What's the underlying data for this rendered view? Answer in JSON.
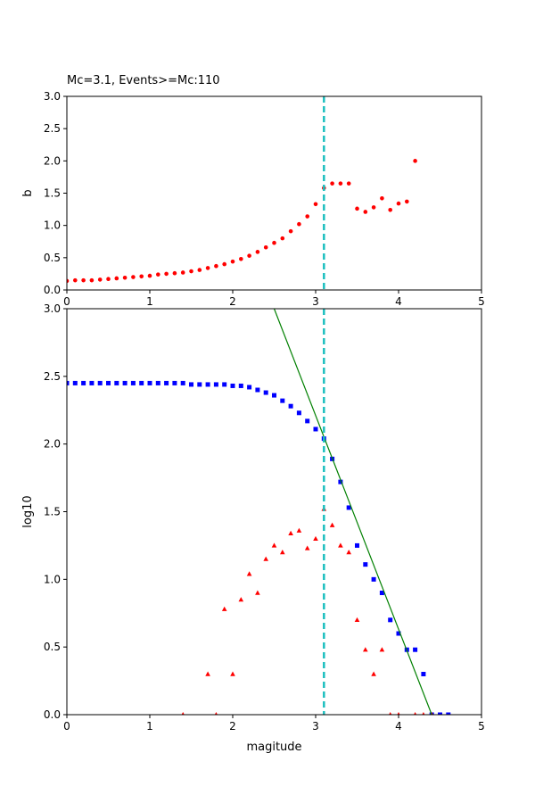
{
  "figure_title": "Mc=3.1, Events>=Mc:110",
  "colors": {
    "b_marker": "#ff0000",
    "cumulative_marker": "#0000ff",
    "noncumulative_marker": "#ff0000",
    "fit_line": "#008000",
    "mc_line": "#1cbfbf"
  },
  "chart_data": [
    {
      "type": "scatter",
      "title": "Mc=3.1, Events>=Mc:110",
      "xlabel": "",
      "ylabel": "b",
      "xlim": [
        0,
        5
      ],
      "ylim": [
        0,
        3
      ],
      "xticks": [
        "0",
        "1",
        "2",
        "3",
        "4",
        "5"
      ],
      "yticks": [
        "0.0",
        "0.5",
        "1.0",
        "1.5",
        "2.0",
        "2.5",
        "3.0"
      ],
      "grid": false,
      "mc_line_x": 3.1,
      "series": [
        {
          "marker": "circle",
          "color": "#ff0000",
          "x": [
            0.0,
            0.1,
            0.2,
            0.3,
            0.4,
            0.5,
            0.6,
            0.7,
            0.8,
            0.9,
            1.0,
            1.1,
            1.2,
            1.3,
            1.4,
            1.5,
            1.6,
            1.7,
            1.8,
            1.9,
            2.0,
            2.1,
            2.2,
            2.3,
            2.4,
            2.5,
            2.6,
            2.7,
            2.8,
            2.9,
            3.0,
            3.1,
            3.2,
            3.3,
            3.4,
            3.5,
            3.6,
            3.7,
            3.8,
            3.9,
            4.0,
            4.1,
            4.2
          ],
          "y": [
            0.14,
            0.15,
            0.15,
            0.15,
            0.16,
            0.17,
            0.18,
            0.19,
            0.2,
            0.21,
            0.22,
            0.24,
            0.25,
            0.26,
            0.27,
            0.29,
            0.31,
            0.34,
            0.37,
            0.4,
            0.44,
            0.48,
            0.53,
            0.59,
            0.66,
            0.73,
            0.8,
            0.91,
            1.02,
            1.14,
            1.33,
            1.58,
            1.65,
            1.65,
            1.65,
            1.26,
            1.21,
            1.28,
            1.42,
            1.24,
            1.34,
            1.37,
            2.0
          ]
        }
      ]
    },
    {
      "type": "scatter",
      "title": "",
      "xlabel": "magitude",
      "ylabel": "log10",
      "xlim": [
        0,
        5
      ],
      "ylim": [
        0,
        3
      ],
      "xticks": [
        "0",
        "1",
        "2",
        "3",
        "4",
        "5"
      ],
      "yticks": [
        "0.0",
        "0.5",
        "1.0",
        "1.5",
        "2.0",
        "2.5",
        "3.0"
      ],
      "grid": false,
      "mc_line_x": 3.1,
      "fit_line": {
        "x": [
          2.5,
          4.4
        ],
        "y": [
          3.0,
          0.0
        ]
      },
      "series": [
        {
          "marker": "square",
          "color": "#0000ff",
          "x": [
            0.0,
            0.1,
            0.2,
            0.3,
            0.4,
            0.5,
            0.6,
            0.7,
            0.8,
            0.9,
            1.0,
            1.1,
            1.2,
            1.3,
            1.4,
            1.5,
            1.6,
            1.7,
            1.8,
            1.9,
            2.0,
            2.1,
            2.2,
            2.3,
            2.4,
            2.5,
            2.6,
            2.7,
            2.8,
            2.9,
            3.0,
            3.1,
            3.2,
            3.3,
            3.4,
            3.5,
            3.6,
            3.7,
            3.8,
            3.9,
            4.0,
            4.1,
            4.2,
            4.3,
            4.4,
            4.5,
            4.6
          ],
          "y": [
            2.45,
            2.45,
            2.45,
            2.45,
            2.45,
            2.45,
            2.45,
            2.45,
            2.45,
            2.45,
            2.45,
            2.45,
            2.45,
            2.45,
            2.45,
            2.44,
            2.44,
            2.44,
            2.44,
            2.44,
            2.43,
            2.43,
            2.42,
            2.4,
            2.38,
            2.36,
            2.32,
            2.28,
            2.23,
            2.17,
            2.11,
            2.04,
            1.89,
            1.72,
            1.53,
            1.25,
            1.11,
            1.0,
            0.9,
            0.7,
            0.6,
            0.48,
            0.48,
            0.3,
            0.0,
            0.0,
            0.0
          ]
        },
        {
          "marker": "triangle",
          "color": "#ff0000",
          "x": [
            1.4,
            1.7,
            1.8,
            1.9,
            2.0,
            2.1,
            2.2,
            2.3,
            2.4,
            2.5,
            2.6,
            2.7,
            2.8,
            2.9,
            3.0,
            3.1,
            3.2,
            3.3,
            3.4,
            3.5,
            3.6,
            3.7,
            3.8,
            3.9,
            4.0,
            4.2,
            4.3,
            4.4
          ],
          "y": [
            0.0,
            0.3,
            0.0,
            0.78,
            0.3,
            0.85,
            1.04,
            0.9,
            1.15,
            1.25,
            1.2,
            1.34,
            1.36,
            1.23,
            1.3,
            1.52,
            1.4,
            1.25,
            1.2,
            0.7,
            0.48,
            0.3,
            0.48,
            0.0,
            0.0,
            0.0,
            0.0,
            0.0
          ]
        }
      ]
    }
  ]
}
